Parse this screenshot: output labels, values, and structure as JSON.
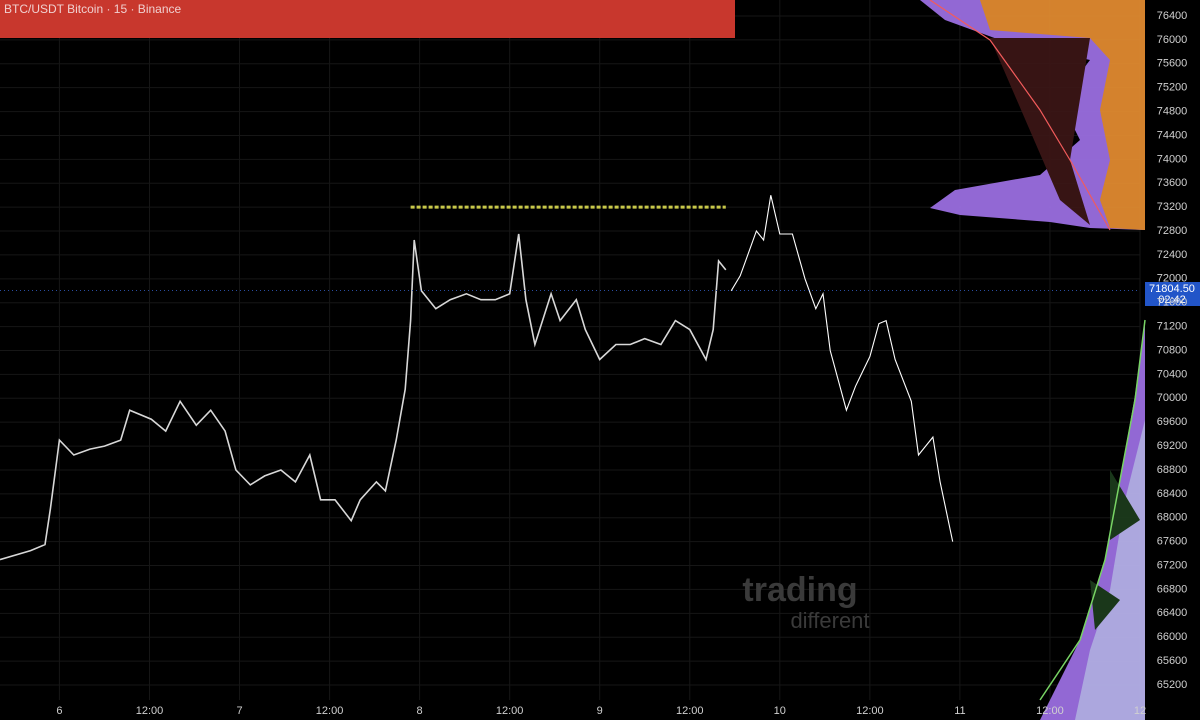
{
  "chart_data": {
    "type": "line",
    "title": "BTC/USDT Bitcoin · 15 · Binance",
    "xlim": [
      5.67,
      12.0
    ],
    "xticks": [
      6,
      {
        "value": 6.5,
        "label": "12:00"
      },
      7,
      {
        "value": 7.5,
        "label": "12:00"
      },
      8,
      {
        "value": 8.5,
        "label": "12:00"
      },
      9,
      {
        "value": 9.5,
        "label": "12:00"
      },
      10,
      {
        "value": 10.5,
        "label": "12:00"
      },
      11,
      {
        "value": 11.5,
        "label": "12:00"
      },
      12
    ],
    "ylim": [
      65200,
      76400
    ],
    "yticks": [
      65200,
      65600,
      66000,
      66400,
      66800,
      67200,
      67600,
      68000,
      68400,
      68800,
      69200,
      69600,
      70000,
      70400,
      70800,
      71200,
      71600,
      72000,
      72400,
      72800,
      73200,
      73600,
      74000,
      74400,
      74800,
      75200,
      75600,
      76000,
      76400
    ],
    "grid": true,
    "series": [
      {
        "color": "#d8d8d8",
        "x": [
          5.67,
          5.84,
          5.92,
          5.95,
          6.0,
          6.08,
          6.17,
          6.25,
          6.34,
          6.39,
          6.51,
          6.59,
          6.67,
          6.76,
          6.84,
          6.92,
          6.98,
          7.06,
          7.14,
          7.23,
          7.31,
          7.39,
          7.45,
          7.53,
          7.62,
          7.67,
          7.76,
          7.81,
          7.87,
          7.92,
          7.95,
          7.97,
          8.01,
          8.09,
          8.17,
          8.26,
          8.34,
          8.42,
          8.5,
          8.55,
          8.59,
          8.64,
          8.73,
          8.78,
          8.87,
          8.92,
          9.0,
          9.09,
          9.17,
          9.25,
          9.34,
          9.42,
          9.5,
          9.59,
          9.63,
          9.66,
          9.7
        ],
        "values": [
          67300,
          67450,
          67550,
          68150,
          69300,
          69050,
          69150,
          69200,
          69300,
          69800,
          69650,
          69450,
          69950,
          69550,
          69800,
          69450,
          68800,
          68550,
          68700,
          68800,
          68600,
          69050,
          68300,
          68300,
          67950,
          68300,
          68600,
          68450,
          69300,
          70150,
          71300,
          72650,
          71800,
          71500,
          71650,
          71750,
          71650,
          71650,
          71750,
          72750,
          71650,
          70900,
          71750,
          71300,
          71650,
          71150,
          70650,
          70900,
          70900,
          71000,
          70900,
          71300,
          71150,
          70650,
          71150,
          72300,
          72150
        ]
      },
      {
        "color": "#ffffff",
        "x": [
          9.73,
          9.78,
          9.81,
          9.87,
          9.91,
          9.95,
          10.0,
          10.07,
          10.14,
          10.2,
          10.24,
          10.28,
          10.37,
          10.42,
          10.46,
          10.5,
          10.55,
          10.59,
          10.64,
          10.73,
          10.77,
          10.85,
          10.89,
          10.96
        ],
        "values": [
          71800,
          72050,
          72300,
          72800,
          72650,
          73400,
          72750,
          72750,
          72000,
          71500,
          71750,
          70800,
          69800,
          70200,
          70450,
          70700,
          71250,
          71300,
          70650,
          69950,
          69050,
          69350,
          68600,
          67600
        ]
      }
    ],
    "level": {
      "price": 73200,
      "from": 7.95,
      "to": 9.7,
      "color": "#c8c84a"
    },
    "last_price": {
      "value": 71804.5,
      "label": "71804.50"
    },
    "countdown": "02:42",
    "watermark": [
      "trading",
      "different"
    ]
  }
}
